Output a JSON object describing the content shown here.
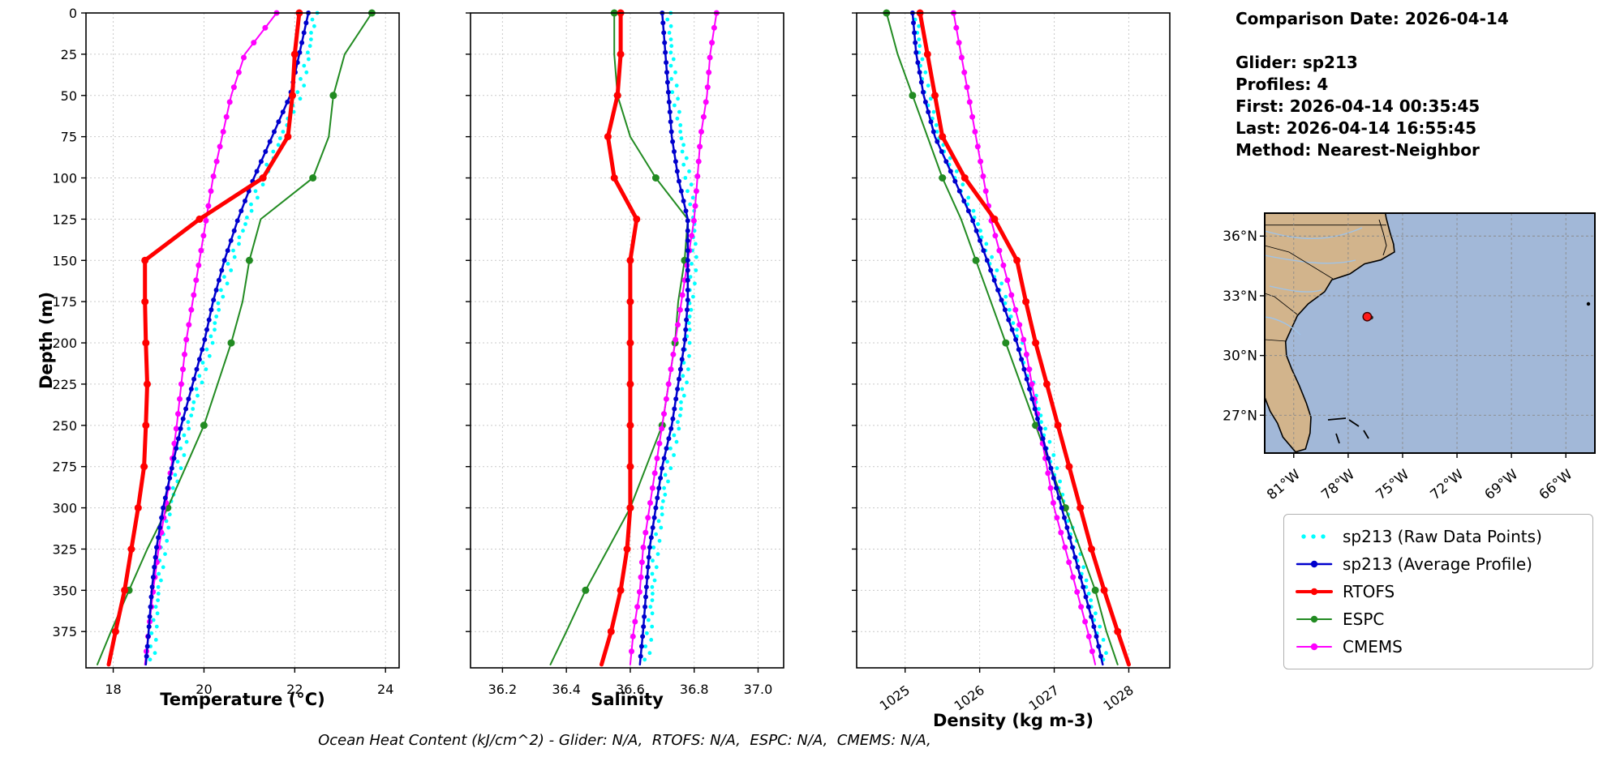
{
  "info_panel": {
    "lines": [
      "Comparison Date: 2026-04-14",
      "",
      "Glider: sp213",
      "Profiles: 4",
      "First: 2026-04-14 00:35:45",
      "Last: 2026-04-14 16:55:45",
      "Method: Nearest-Neighbor"
    ]
  },
  "footer": "Ocean Heat Content (kJ/cm^2) - Glider: N/A,  RTOFS: N/A,  ESPC: N/A,  CMEMS: N/A,",
  "legend": {
    "items": [
      {
        "label": "sp213 (Raw Data Points)",
        "color": "#00ffff",
        "style": "dots",
        "lw": 0
      },
      {
        "label": "sp213 (Average Profile)",
        "color": "#0000cd",
        "style": "line-dot",
        "lw": 2.5
      },
      {
        "label": "RTOFS",
        "color": "#ff0000",
        "style": "line-dot",
        "lw": 4
      },
      {
        "label": "ESPC",
        "color": "#228b22",
        "style": "line-dot",
        "lw": 2
      },
      {
        "label": "CMEMS",
        "color": "#ff00ff",
        "style": "line-dot",
        "lw": 2
      }
    ]
  },
  "map": {
    "extent": {
      "lon_min": -82.6,
      "lon_max": -64.4,
      "lat_min": 25.1,
      "lat_max": 37.15
    },
    "lat_ticks": [
      {
        "lat": 36,
        "label": "36°N"
      },
      {
        "lat": 33,
        "label": "33°N"
      },
      {
        "lat": 30,
        "label": "30°N"
      },
      {
        "lat": 27,
        "label": "27°N"
      }
    ],
    "lon_ticks": [
      {
        "lon": -81,
        "label": "81°W"
      },
      {
        "lon": -78,
        "label": "78°W"
      },
      {
        "lon": -75,
        "label": "75°W"
      },
      {
        "lon": -72,
        "label": "72°W"
      },
      {
        "lon": -69,
        "label": "69°W"
      },
      {
        "lon": -66,
        "label": "66°W"
      }
    ],
    "marker": {
      "lon": -76.95,
      "lat": 31.95
    },
    "colors": {
      "ocean": "#a2b8d8",
      "land": "#d2b48c",
      "grid": "#8a8a8a",
      "marker": "#ff1a1a"
    }
  },
  "chart_data": {
    "type": "line",
    "title": "Glider profile comparison: sp213 vs RTOFS / ESPC / CMEMS",
    "shared_y": {
      "label": "Depth (m)",
      "lim": [
        0,
        397
      ],
      "ticks": [
        0,
        25,
        50,
        75,
        100,
        125,
        150,
        175,
        200,
        225,
        250,
        275,
        300,
        325,
        350,
        375
      ]
    },
    "depths": [
      0,
      25,
      50,
      75,
      100,
      125,
      150,
      175,
      200,
      225,
      250,
      275,
      300,
      325,
      350,
      375,
      395
    ],
    "series_defs": [
      {
        "key": "raw",
        "name": "sp213 (Raw Data Points)",
        "color": "#00ffff",
        "line": false,
        "lw": 0,
        "marker_r": 2.4,
        "marker_step": 4,
        "jitter_frac": 0.008
      },
      {
        "key": "espc",
        "name": "ESPC",
        "color": "#228b22",
        "line": true,
        "lw": 2,
        "marker_r": 4.5,
        "marker_step": 50,
        "jitter_frac": 0
      },
      {
        "key": "cmems",
        "name": "CMEMS",
        "color": "#ff00ff",
        "line": true,
        "lw": 2,
        "marker_r": 3.5,
        "marker_step": 9,
        "jitter_frac": 0
      },
      {
        "key": "avg",
        "name": "sp213 (Average Profile)",
        "color": "#0000cd",
        "line": true,
        "lw": 2.5,
        "marker_r": 3,
        "marker_step": 6,
        "jitter_frac": 0
      },
      {
        "key": "rtofs",
        "name": "RTOFS",
        "color": "#ff0000",
        "line": true,
        "lw": 5,
        "marker_r": 4.5,
        "marker_step": 25,
        "jitter_frac": 0
      }
    ],
    "plots": [
      {
        "xlabel": "Temperature (°C)",
        "xlim": [
          17.4,
          24.3
        ],
        "x_ticks": [
          18,
          20,
          22,
          24
        ],
        "x_tick_labels": [
          "18",
          "20",
          "22",
          "24"
        ],
        "rotate_x_labels": 0,
        "show_y_labels": true,
        "values": {
          "raw": [
            22.45,
            22.3,
            22.1,
            21.7,
            21.3,
            20.95,
            20.6,
            20.35,
            20.15,
            19.9,
            19.65,
            19.45,
            19.25,
            19.1,
            19.0,
            18.9,
            18.85
          ],
          "avg": [
            22.3,
            22.1,
            21.9,
            21.5,
            21.1,
            20.75,
            20.45,
            20.2,
            20.0,
            19.75,
            19.5,
            19.3,
            19.1,
            18.95,
            18.85,
            18.78,
            18.72
          ],
          "rtofs": [
            22.1,
            22.0,
            21.95,
            21.85,
            21.3,
            19.9,
            18.7,
            18.7,
            18.72,
            18.75,
            18.72,
            18.68,
            18.55,
            18.4,
            18.25,
            18.05,
            17.9
          ],
          "espc": [
            23.7,
            23.1,
            22.85,
            22.75,
            22.4,
            21.25,
            21.0,
            20.85,
            20.6,
            20.3,
            20.0,
            19.6,
            19.2,
            18.75,
            18.35,
            17.95,
            17.65
          ],
          "cmems": [
            21.6,
            20.9,
            20.6,
            20.4,
            20.2,
            20.05,
            19.9,
            19.75,
            19.6,
            19.5,
            19.4,
            19.28,
            19.15,
            19.0,
            18.88,
            18.78,
            18.7
          ]
        }
      },
      {
        "xlabel": "Salinity",
        "xlim": [
          36.1,
          37.08
        ],
        "x_ticks": [
          36.2,
          36.4,
          36.6,
          36.8,
          37.0
        ],
        "x_tick_labels": [
          "36.2",
          "36.4",
          "36.6",
          "36.8",
          "37.0"
        ],
        "rotate_x_labels": 0,
        "show_y_labels": false,
        "values": {
          "raw": [
            36.72,
            36.73,
            36.74,
            36.76,
            36.78,
            36.8,
            36.8,
            36.79,
            36.78,
            36.77,
            36.75,
            36.72,
            36.7,
            36.68,
            36.67,
            36.66,
            36.65
          ],
          "avg": [
            36.7,
            36.71,
            36.72,
            36.73,
            36.75,
            36.78,
            36.78,
            36.78,
            36.77,
            36.75,
            36.73,
            36.7,
            36.68,
            36.66,
            36.65,
            36.64,
            36.63
          ],
          "rtofs": [
            36.57,
            36.57,
            36.56,
            36.53,
            36.55,
            36.62,
            36.6,
            36.6,
            36.6,
            36.6,
            36.6,
            36.6,
            36.6,
            36.59,
            36.57,
            36.54,
            36.51
          ],
          "espc": [
            36.55,
            36.55,
            36.56,
            36.6,
            36.68,
            36.78,
            36.77,
            36.75,
            36.74,
            36.72,
            36.7,
            36.65,
            36.6,
            36.53,
            36.46,
            36.4,
            36.35
          ],
          "cmems": [
            36.87,
            36.85,
            36.84,
            36.82,
            36.81,
            36.8,
            36.78,
            36.76,
            36.74,
            36.72,
            36.7,
            36.68,
            36.66,
            36.64,
            36.63,
            36.61,
            36.6
          ]
        }
      },
      {
        "xlabel": "Density (kg m-3)",
        "xlim": [
          1024.35,
          1028.55
        ],
        "x_ticks": [
          1025,
          1026,
          1027,
          1028
        ],
        "x_tick_labels": [
          "1025",
          "1026",
          "1027",
          "1028"
        ],
        "rotate_x_labels": 35,
        "show_y_labels": false,
        "values": {
          "raw": [
            1025.15,
            1025.2,
            1025.3,
            1025.45,
            1025.7,
            1025.95,
            1026.15,
            1026.35,
            1026.55,
            1026.7,
            1026.85,
            1027.0,
            1027.15,
            1027.3,
            1027.45,
            1027.6,
            1027.7
          ],
          "avg": [
            1025.1,
            1025.15,
            1025.25,
            1025.4,
            1025.65,
            1025.9,
            1026.1,
            1026.3,
            1026.5,
            1026.65,
            1026.8,
            1026.95,
            1027.1,
            1027.25,
            1027.4,
            1027.55,
            1027.65
          ],
          "rtofs": [
            1025.2,
            1025.3,
            1025.4,
            1025.5,
            1025.8,
            1026.2,
            1026.5,
            1026.62,
            1026.75,
            1026.9,
            1027.05,
            1027.2,
            1027.35,
            1027.5,
            1027.67,
            1027.85,
            1028.0
          ],
          "espc": [
            1024.75,
            1024.9,
            1025.1,
            1025.3,
            1025.5,
            1025.75,
            1025.95,
            1026.15,
            1026.35,
            1026.55,
            1026.75,
            1026.95,
            1027.15,
            1027.35,
            1027.55,
            1027.7,
            1027.85
          ],
          "cmems": [
            1025.65,
            1025.75,
            1025.85,
            1025.95,
            1026.05,
            1026.15,
            1026.3,
            1026.45,
            1026.6,
            1026.7,
            1026.8,
            1026.9,
            1027.0,
            1027.15,
            1027.3,
            1027.45,
            1027.55
          ]
        }
      }
    ]
  }
}
